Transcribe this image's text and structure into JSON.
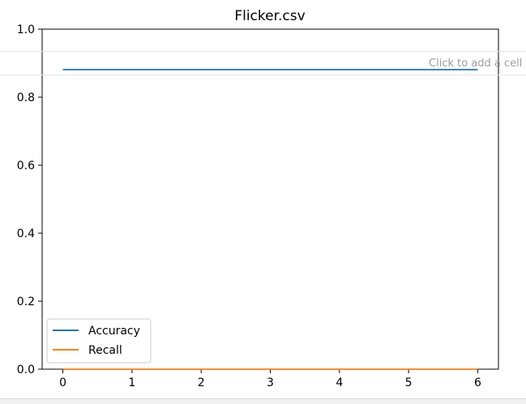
{
  "notebook": {
    "cell_hint": "Click to add a cell"
  },
  "chart_data": {
    "type": "line",
    "title": "Flicker.csv",
    "xlabel": "",
    "ylabel": "",
    "x": [
      0,
      1,
      2,
      3,
      4,
      5,
      6
    ],
    "xlim": [
      -0.3,
      6.3
    ],
    "ylim": [
      0.0,
      1.0
    ],
    "xticks": [
      "0",
      "1",
      "2",
      "3",
      "4",
      "5",
      "6"
    ],
    "yticks": [
      "0.0",
      "0.2",
      "0.4",
      "0.6",
      "0.8",
      "1.0"
    ],
    "grid": false,
    "legend_position": "lower-left",
    "series": [
      {
        "name": "Accuracy",
        "color": "#1f77b4",
        "values": [
          0.881,
          0.881,
          0.881,
          0.881,
          0.881,
          0.881,
          0.881
        ]
      },
      {
        "name": "Recall",
        "color": "#ff7f0e",
        "values": [
          0.0,
          0.0,
          0.0,
          0.0,
          0.0,
          0.0,
          0.0
        ]
      }
    ]
  }
}
